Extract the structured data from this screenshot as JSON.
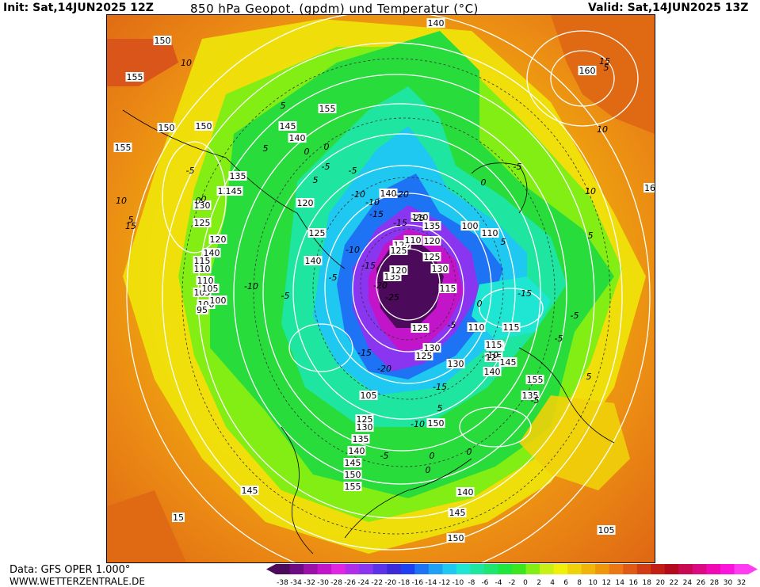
{
  "header": {
    "init": "Init: Sat,14JUN2025 12Z",
    "title": "850 hPa Geopot. (gpdm) und Temperatur (°C)",
    "valid": "Valid: Sat,14JUN2025 13Z"
  },
  "footer": {
    "data_source": "Data: GFS OPER 1.000°",
    "website": "WWW.WETTERZENTRALE.DE"
  },
  "legend": {
    "ticks": [
      "-38",
      "-34",
      "-32",
      "-30",
      "-28",
      "-26",
      "-24",
      "-22",
      "-20",
      "-18",
      "-16",
      "-14",
      "-12",
      "-10",
      "-8",
      "-6",
      "-4",
      "-2",
      "0",
      "2",
      "4",
      "6",
      "8",
      "10",
      "12",
      "14",
      "16",
      "18",
      "20",
      "22",
      "24",
      "26",
      "28",
      "30",
      "32"
    ],
    "colors": [
      "#4b0a5a",
      "#6e0a82",
      "#9b10a8",
      "#c214c8",
      "#e025e3",
      "#b02ee8",
      "#8a35f0",
      "#5a32e8",
      "#3c2ad8",
      "#1e40f0",
      "#1e73f5",
      "#1ea0f5",
      "#1ec8f0",
      "#1ee6d2",
      "#1ee6a0",
      "#1ee66e",
      "#1ee63c",
      "#3ce61e",
      "#82ee14",
      "#c8f014",
      "#f0f00a",
      "#f0d20a",
      "#f0b40a",
      "#f0960a",
      "#eb7814",
      "#e15a14",
      "#d23c14",
      "#c31e14",
      "#b40a1e",
      "#c80a50",
      "#dc0a82",
      "#f00ab4",
      "#fa14dc",
      "#ff3cf0"
    ]
  },
  "map": {
    "geopotential_labels": [
      "150",
      "150",
      "155",
      "150",
      "145",
      "140",
      "135",
      "130",
      "125",
      "120",
      "115",
      "110",
      "105",
      "100",
      "95",
      "155",
      "150",
      "155",
      "145",
      "140",
      "135",
      "120",
      "125",
      "140",
      "110",
      "105",
      "100",
      "140",
      "110",
      "120",
      "125",
      "130",
      "115",
      "135",
      "125",
      "130",
      "105",
      "125",
      "130",
      "135",
      "140",
      "145",
      "150",
      "155",
      "160",
      "16",
      "150",
      "140",
      "145",
      "150",
      "155",
      "135",
      "140",
      "125",
      "130",
      "115",
      "120",
      "110",
      "125",
      "120",
      "135",
      "110",
      "140",
      "125",
      "145",
      "115",
      "110",
      "100",
      "105",
      "15",
      "145",
      "140"
    ],
    "temperature_labels": [
      "10",
      "5",
      "0",
      "-5",
      "-10",
      "-15",
      "-20",
      "-25",
      "5",
      "0",
      "-5",
      "-10",
      "-5",
      "0",
      "5",
      "10",
      "15",
      "5",
      "0",
      "-5",
      "-10",
      "-15",
      "5",
      "10",
      "15",
      "-5",
      "0",
      "5",
      "10",
      "-15",
      "-10",
      "-5",
      "0",
      "5",
      "-5",
      "0",
      "5",
      "-5",
      "-5",
      "5",
      "0",
      "-15",
      "-20",
      "-15",
      "-10",
      "-5",
      "0",
      "-5",
      "-10",
      "-15",
      "-20",
      "-25"
    ]
  }
}
